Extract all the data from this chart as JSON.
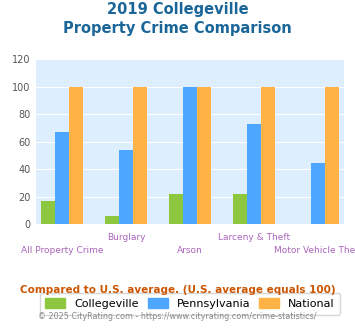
{
  "title_line1": "2019 Collegeville",
  "title_line2": "Property Crime Comparison",
  "collegeville": [
    17,
    6,
    22,
    22,
    0
  ],
  "pennsylvania": [
    67,
    54,
    100,
    73,
    45
  ],
  "national": [
    100,
    100,
    100,
    100,
    100
  ],
  "collegeville_color": "#8dc63f",
  "pennsylvania_color": "#4da6ff",
  "national_color": "#ffb347",
  "title_color": "#1a6699",
  "plot_bg_color": "#ddeeff",
  "ylim": [
    0,
    120
  ],
  "yticks": [
    0,
    20,
    40,
    60,
    80,
    100,
    120
  ],
  "footnote1": "Compared to U.S. average. (U.S. average equals 100)",
  "footnote2": "© 2025 CityRating.com - https://www.cityrating.com/crime-statistics/",
  "footnote1_color": "#cc5500",
  "footnote2_color": "#888888",
  "legend_labels": [
    "Collegeville",
    "Pennsylvania",
    "National"
  ],
  "top_row_labels": {
    "1": "Burglary",
    "3": "Larceny & Theft"
  },
  "bottom_row_labels": {
    "0": "All Property Crime",
    "2": "Arson",
    "4": "Motor Vehicle Theft"
  },
  "label_color": "#aa66bb",
  "bar_width": 0.22,
  "group_positions": [
    0,
    1,
    2,
    3,
    4
  ]
}
